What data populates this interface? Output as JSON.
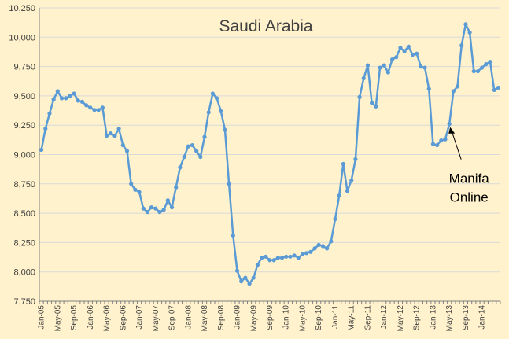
{
  "chart_data": {
    "type": "line",
    "title": "Saudi Arabia",
    "xlabel": "",
    "ylabel": "",
    "ylim": [
      7750,
      10250
    ],
    "yticks": [
      7750,
      8000,
      8250,
      8500,
      8750,
      9000,
      9250,
      9500,
      9750,
      10000,
      10250
    ],
    "ytick_labels": [
      "7,750",
      "8,000",
      "8,250",
      "8,500",
      "8,750",
      "9,000",
      "9,250",
      "9,500",
      "9,750",
      "10,000",
      "10,250"
    ],
    "x_start": "2005-01",
    "xtick_labels": [
      "Jan-05",
      "May-05",
      "Sep-05",
      "Jan-06",
      "May-06",
      "Sep-06",
      "Jan-07",
      "May-07",
      "Sep-07",
      "Jan-08",
      "May-08",
      "Sep-08",
      "Jan-09",
      "May-09",
      "Sep-09",
      "Jan-10",
      "May-10",
      "Sep-10",
      "Jan-11",
      "May-11",
      "Sep-11",
      "Jan-12",
      "May-12",
      "Sep-12",
      "Jan-13",
      "May-13",
      "Sep-13",
      "Jan-14"
    ],
    "grid": true,
    "legend": "none",
    "colors": {
      "background": "#FFF2CC",
      "line": "#5B9BD5",
      "grid": "#D9D9D9",
      "axis": "#808080"
    },
    "series": [
      {
        "values": [
          9040,
          9220,
          9350,
          9470,
          9540,
          9480,
          9480,
          9500,
          9520,
          9460,
          9450,
          9420,
          9400,
          9380,
          9380,
          9400,
          9160,
          9180,
          9160,
          9220,
          9080,
          9030,
          8750,
          8700,
          8680,
          8540,
          8510,
          8550,
          8540,
          8510,
          8530,
          8610,
          8550,
          8720,
          8890,
          8980,
          9070,
          9080,
          9030,
          8980,
          9150,
          9360,
          9520,
          9480,
          9370,
          9210,
          8750,
          8310,
          8010,
          7920,
          7950,
          7900,
          7950,
          8060,
          8120,
          8130,
          8100,
          8100,
          8120,
          8120,
          8130,
          8130,
          8140,
          8120,
          8150,
          8160,
          8170,
          8200,
          8230,
          8220,
          8200,
          8260,
          8450,
          8650,
          8920,
          8690,
          8780,
          8960,
          9490,
          9650,
          9760,
          9440,
          9410,
          9740,
          9760,
          9700,
          9810,
          9830,
          9910,
          9880,
          9920,
          9850,
          9860,
          9750,
          9740,
          9560,
          9090,
          9080,
          9120,
          9130,
          9260,
          9540,
          9580,
          9930,
          10110,
          10040,
          9710,
          9710,
          9740,
          9770,
          9790,
          9550,
          9570
        ]
      }
    ],
    "annotations": [
      {
        "text_lines": [
          "Manifa",
          "Online"
        ],
        "x_index": 100,
        "y": 9260
      }
    ]
  }
}
